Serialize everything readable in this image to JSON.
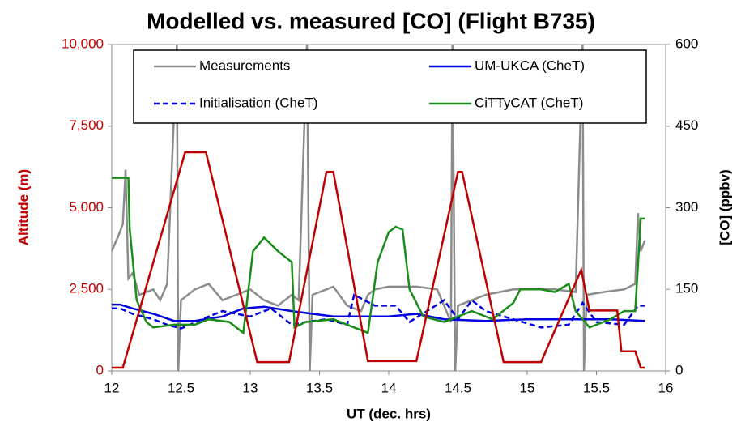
{
  "chart_data": {
    "type": "line",
    "title": "Modelled vs. measured [CO] (Flight B735)",
    "x_label": "UT (dec. hrs)",
    "y_label": "Altitude (m)",
    "y2_label": "[CO] (ppbv)",
    "y_label_color": "#c00000",
    "xlim": [
      12,
      16
    ],
    "xticks": [
      12,
      12.5,
      13,
      13.5,
      14,
      14.5,
      15,
      15.5,
      16
    ],
    "ylim": [
      0,
      10000
    ],
    "yticks": [
      0,
      {
        "value": 2500,
        "label": "2,500"
      },
      {
        "value": 5000,
        "label": "5,000"
      },
      {
        "value": 7500,
        "label": "7,500"
      },
      {
        "value": 10000,
        "label": "10,000"
      }
    ],
    "y2lim": [
      0,
      600
    ],
    "y2ticks": [
      0,
      150,
      300,
      450,
      600
    ],
    "grid": false,
    "legend": "top",
    "series": [
      {
        "name": "Measurements",
        "color": "#8c8c8c",
        "axis": "y2",
        "x": [
          12.0,
          12.05,
          12.08,
          12.1,
          12.12,
          12.15,
          12.2,
          12.3,
          12.35,
          12.4,
          12.47,
          12.48,
          12.5,
          12.6,
          12.7,
          12.8,
          12.9,
          13.0,
          13.1,
          13.2,
          13.3,
          13.35,
          13.41,
          13.43,
          13.45,
          13.5,
          13.6,
          13.7,
          13.8,
          13.85,
          13.9,
          14.0,
          14.2,
          14.35,
          14.45,
          14.46,
          14.48,
          14.5,
          14.6,
          14.7,
          14.8,
          14.9,
          15.0,
          15.2,
          15.35,
          15.4,
          15.41,
          15.43,
          15.55,
          15.7,
          15.78,
          15.8,
          15.82,
          15.85
        ],
        "values": [
          220,
          250,
          270,
          370,
          170,
          180,
          140,
          150,
          130,
          160,
          600,
          0,
          130,
          150,
          160,
          130,
          140,
          150,
          130,
          120,
          140,
          130,
          600,
          0,
          140,
          145,
          155,
          120,
          110,
          140,
          150,
          155,
          155,
          150,
          90,
          600,
          0,
          120,
          130,
          140,
          145,
          150,
          150,
          150,
          145,
          600,
          0,
          140,
          145,
          150,
          160,
          290,
          220,
          240
        ]
      },
      {
        "name": "UM-UKCA (CheT)",
        "color": "#0000e0",
        "axis": "y2",
        "x": [
          12.0,
          12.06,
          12.15,
          12.3,
          12.45,
          12.6,
          12.8,
          12.95,
          13.1,
          13.3,
          13.6,
          14.0,
          14.2,
          14.4,
          14.7,
          15.0,
          15.3,
          15.6,
          15.85
        ],
        "values": [
          122,
          122,
          115,
          105,
          92,
          92,
          100,
          115,
          118,
          110,
          100,
          100,
          105,
          95,
          92,
          95,
          95,
          95,
          92
        ]
      },
      {
        "name": "Initialisation (CheT)",
        "color": "#0000e0",
        "axis": "y2",
        "dashed": true,
        "x": [
          12.0,
          12.06,
          12.15,
          12.3,
          12.4,
          12.5,
          12.7,
          12.8,
          13.0,
          13.15,
          13.3,
          13.4,
          13.55,
          13.7,
          13.75,
          13.9,
          14.05,
          14.15,
          14.4,
          14.5,
          14.6,
          14.7,
          14.9,
          15.1,
          15.3,
          15.4,
          15.5,
          15.7,
          15.8,
          15.85
        ],
        "values": [
          115,
          115,
          105,
          95,
          85,
          78,
          100,
          110,
          100,
          115,
          85,
          90,
          95,
          85,
          140,
          120,
          120,
          90,
          130,
          95,
          130,
          110,
          95,
          80,
          85,
          125,
          90,
          85,
          120,
          120
        ]
      },
      {
        "name": "CiTTyCAT (CheT)",
        "color": "#1a8c1a",
        "axis": "y2",
        "x": [
          12.0,
          12.12,
          12.13,
          12.18,
          12.25,
          12.3,
          12.45,
          12.6,
          12.7,
          12.85,
          12.95,
          13.02,
          13.1,
          13.2,
          13.3,
          13.32,
          13.4,
          13.6,
          13.75,
          13.85,
          13.92,
          14.0,
          14.05,
          14.1,
          14.15,
          14.25,
          14.4,
          14.6,
          14.75,
          14.9,
          14.95,
          15.1,
          15.2,
          15.3,
          15.35,
          15.45,
          15.6,
          15.7,
          15.78,
          15.82,
          15.85
        ],
        "values": [
          355,
          355,
          260,
          130,
          90,
          80,
          85,
          85,
          95,
          90,
          70,
          220,
          245,
          220,
          200,
          80,
          90,
          95,
          80,
          70,
          200,
          255,
          265,
          260,
          150,
          100,
          90,
          110,
          95,
          125,
          150,
          150,
          145,
          160,
          110,
          80,
          95,
          110,
          110,
          280,
          280
        ]
      },
      {
        "color": "#c00000",
        "axis": "y",
        "x": [
          12.0,
          12.08,
          12.53,
          12.68,
          13.05,
          13.28,
          13.55,
          13.6,
          13.85,
          14.2,
          14.5,
          14.53,
          14.83,
          15.1,
          15.39,
          15.45,
          15.65,
          15.68,
          15.78,
          15.82,
          15.85
        ],
        "values": [
          100,
          100,
          6700,
          6700,
          270,
          270,
          6100,
          6100,
          300,
          300,
          6100,
          6100,
          270,
          270,
          3100,
          1850,
          1850,
          600,
          600,
          100,
          100
        ]
      }
    ]
  }
}
